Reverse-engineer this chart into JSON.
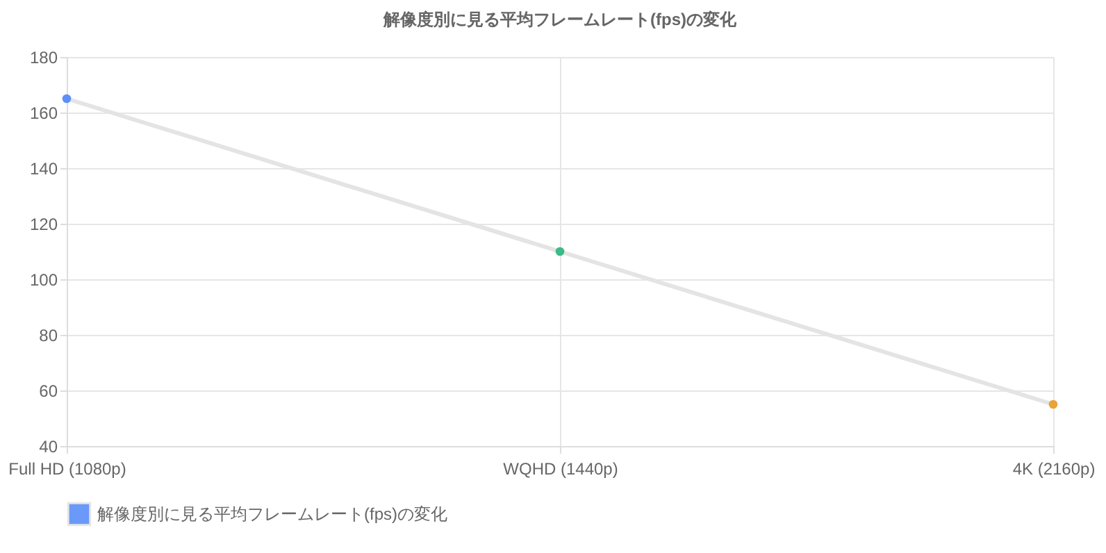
{
  "chart_data": {
    "type": "line",
    "title": "解像度別に見る平均フレームレート(fps)の変化",
    "categories": [
      "Full HD (1080p)",
      "WQHD (1440p)",
      "4K (2160p)"
    ],
    "series": [
      {
        "name": "解像度別に見る平均フレームレート(fps)の変化",
        "color": "#e4e4e4",
        "colors": [
          "#5b8ff9",
          "#3cba8a",
          "#e8a33a"
        ],
        "values": [
          165,
          110,
          55
        ]
      }
    ],
    "ylim": [
      40,
      180
    ],
    "yticks": [
      40,
      60,
      80,
      100,
      120,
      140,
      160,
      180
    ],
    "grid": true,
    "legend": "bottom",
    "marker": "circle"
  }
}
